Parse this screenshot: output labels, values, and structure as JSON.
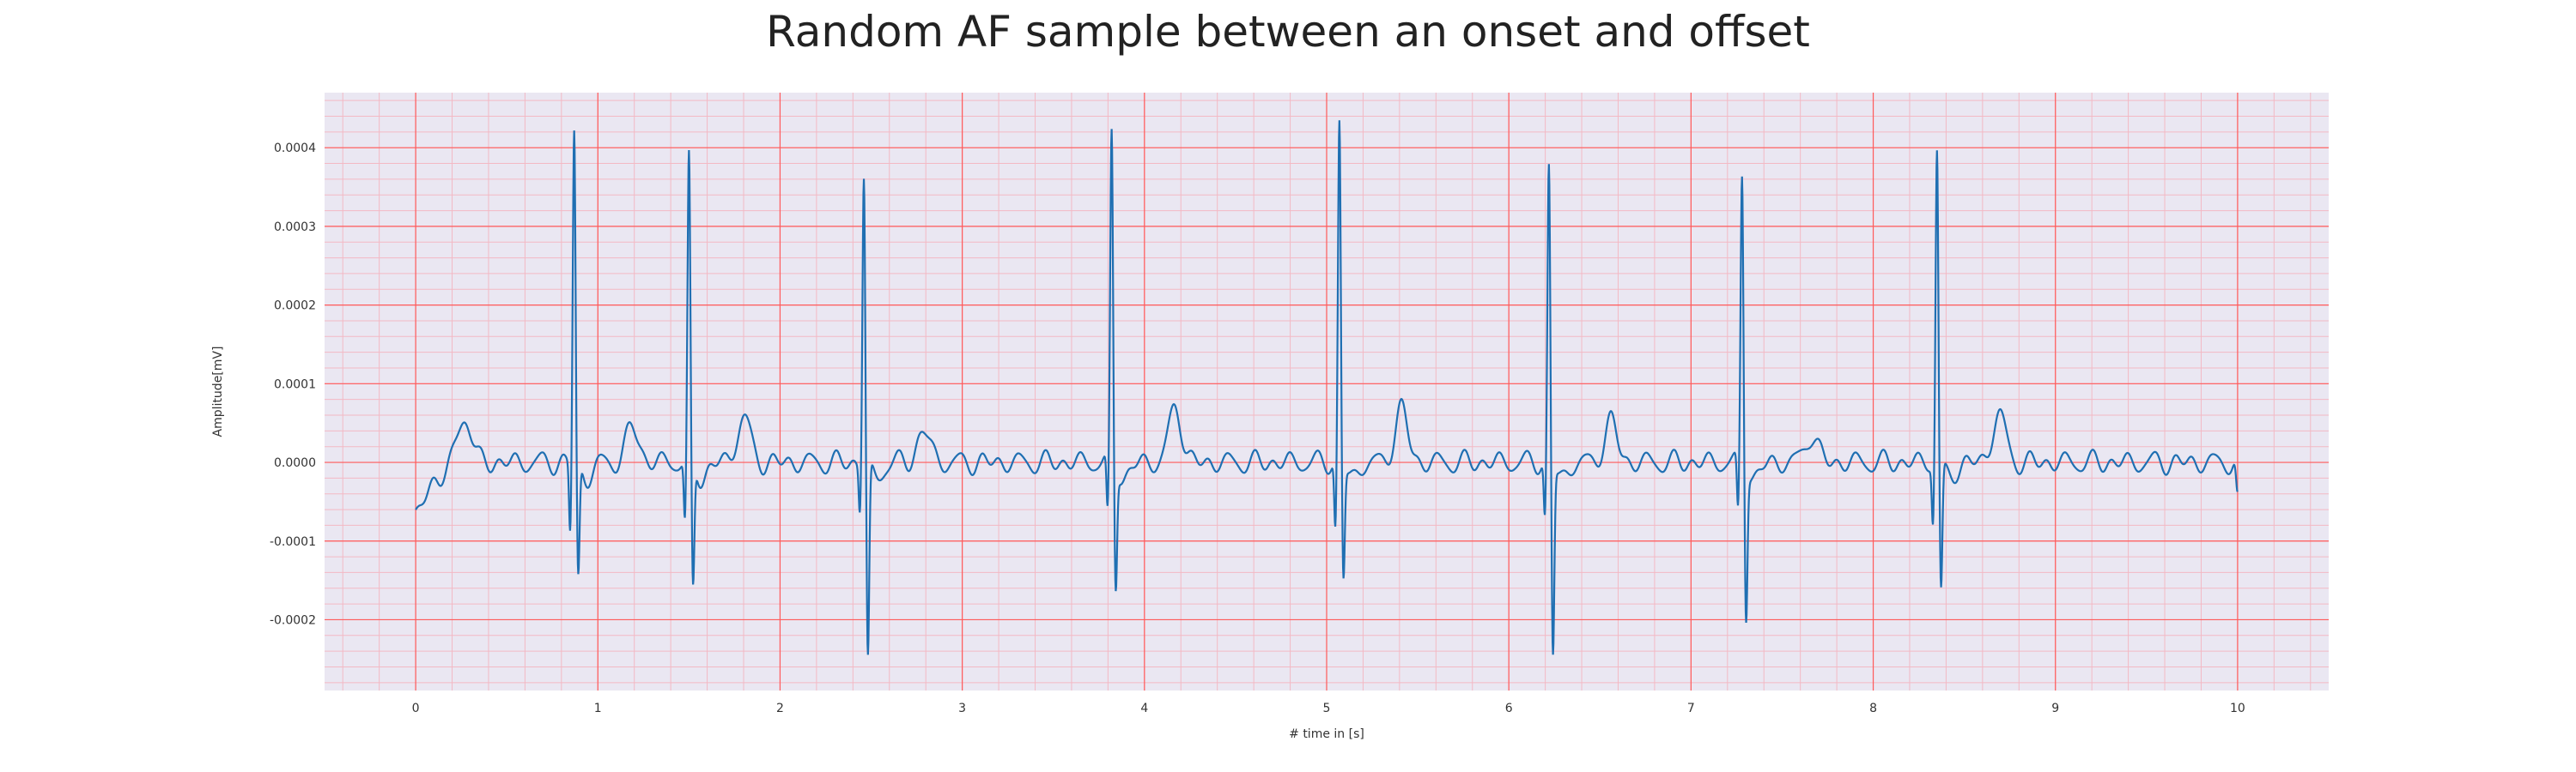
{
  "chart_data": {
    "type": "line",
    "title": "Random AF sample between an onset and offset",
    "xlabel": "# time in [s]",
    "ylabel": "Amplitude[mV]",
    "xlim": [
      -0.5,
      10.5
    ],
    "ylim": [
      -0.00029,
      0.00047
    ],
    "xticks": [
      0,
      1,
      2,
      3,
      4,
      5,
      6,
      7,
      8,
      9,
      10
    ],
    "yticks": [
      -0.0002,
      -0.0001,
      0.0,
      0.0001,
      0.0002,
      0.0003,
      0.0004
    ],
    "ytick_labels": [
      "-0.0002",
      "-0.0001",
      "0.0000",
      "0.0001",
      "0.0002",
      "0.0003",
      "0.0004"
    ],
    "grid": {
      "major": true,
      "minor": true,
      "major_color": "#ff5a5a",
      "minor_color": "#f3b9c4"
    },
    "background_color": "#eae7f2",
    "line_color": "#1f6fb2",
    "series": [
      {
        "r_peaks": [
          {
            "t": 0.87,
            "r": 0.000425,
            "q": -9e-05,
            "s": -0.000148
          },
          {
            "t": 1.5,
            "r": 0.000385,
            "q": -8e-05,
            "s": -0.000163
          },
          {
            "t": 2.46,
            "r": 0.00037,
            "q": -6e-05,
            "s": -0.000252
          },
          {
            "t": 3.82,
            "r": 0.000418,
            "q": -7.5e-05,
            "s": -0.000155
          },
          {
            "t": 5.07,
            "r": 0.000433,
            "q": -9e-05,
            "s": -0.000145
          },
          {
            "t": 6.22,
            "r": 0.000378,
            "q": -7.5e-05,
            "s": -0.000242
          },
          {
            "t": 7.28,
            "r": 0.000368,
            "q": -7.2e-05,
            "s": -0.000188
          },
          {
            "t": 8.35,
            "r": 0.000402,
            "q": -7.5e-05,
            "s": -0.000165
          }
        ],
        "t_waves": [
          {
            "t": 0.27,
            "a": 6e-05
          },
          {
            "t": 1.19,
            "a": 4.5e-05
          },
          {
            "t": 1.8,
            "a": 5.8e-05
          },
          {
            "t": 2.79,
            "a": 4e-05
          },
          {
            "t": 4.17,
            "a": 7e-05
          },
          {
            "t": 5.41,
            "a": 6.8e-05
          },
          {
            "t": 6.56,
            "a": 5.2e-05
          },
          {
            "t": 7.66,
            "a": 3.5e-05
          },
          {
            "t": 8.69,
            "a": 6.2e-05
          }
        ],
        "start": {
          "t": 0.0,
          "v": -7.3e-05
        },
        "end": {
          "t": 10.0,
          "v": -5e-05
        }
      }
    ]
  }
}
